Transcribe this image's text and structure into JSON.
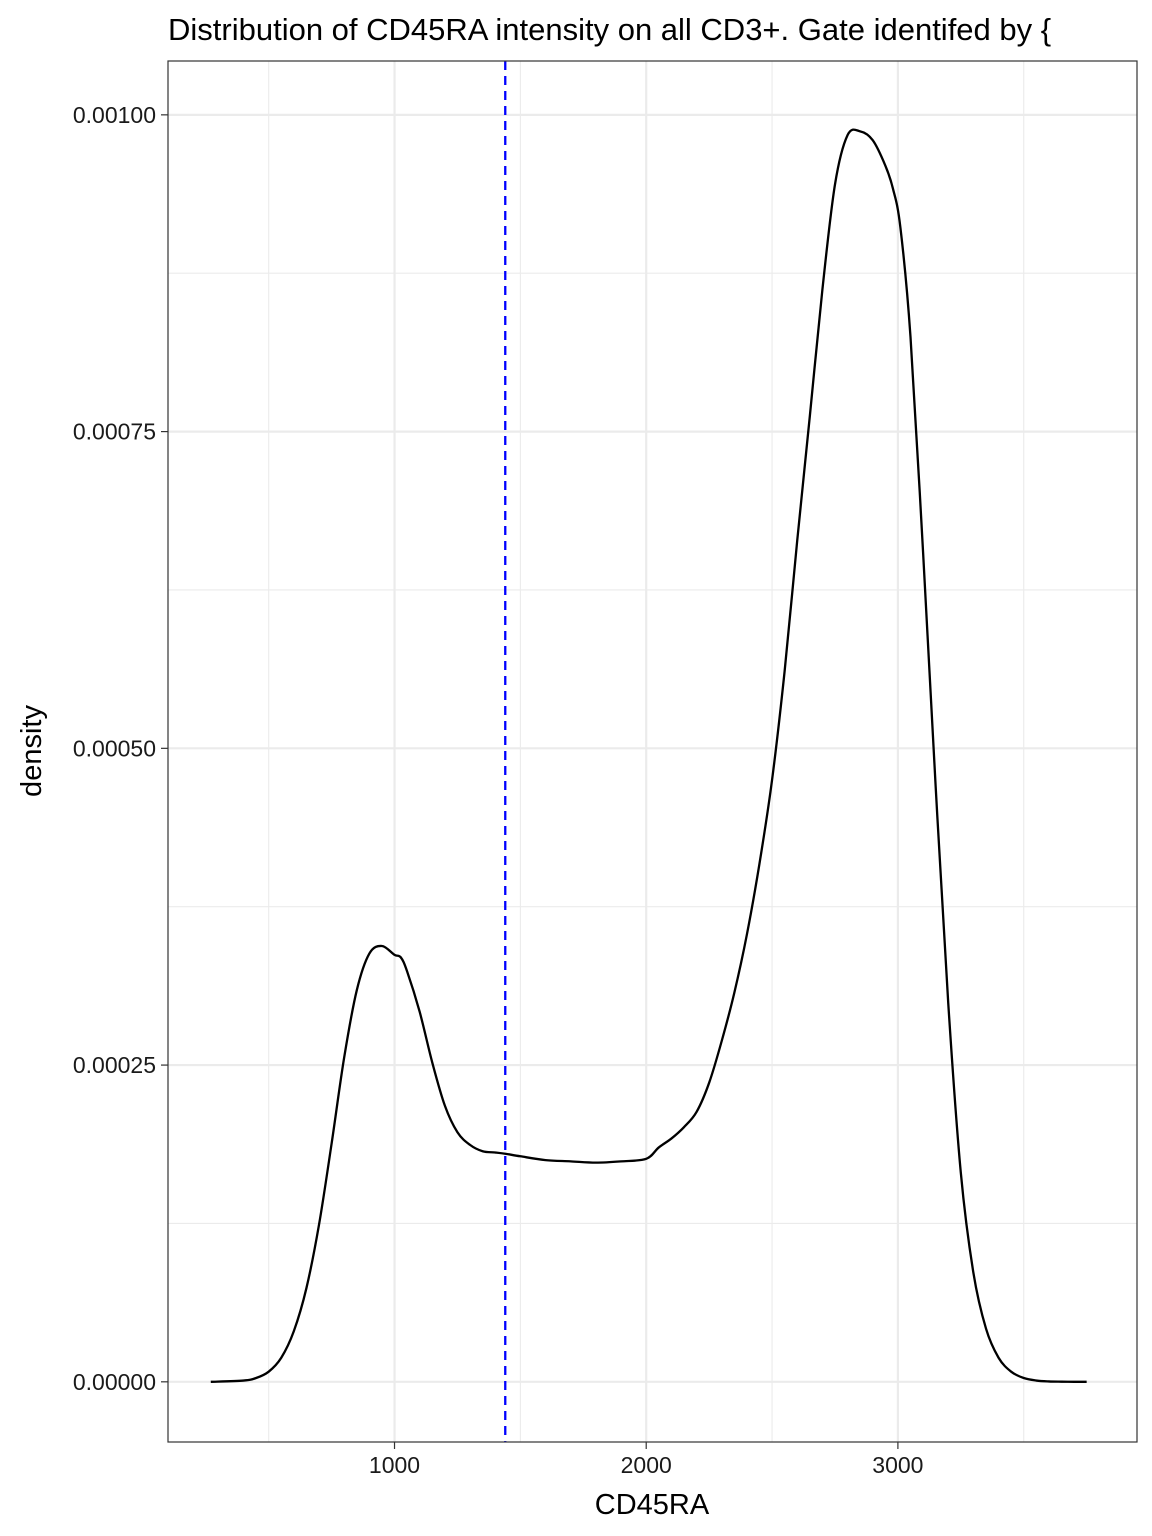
{
  "chart_data": {
    "type": "area",
    "title": "Distribution of CD45RA intensity on all CD3+. Gate identifed by {",
    "xlabel": "CD45RA",
    "ylabel": "density",
    "xlim": [
      100,
      3950
    ],
    "ylim": [
      -4.75e-05,
      0.0010425
    ],
    "x_ticks": [
      1000,
      2000,
      3000
    ],
    "x_tick_labels": [
      "1000",
      "2000",
      "3000"
    ],
    "x_minor_ticks": [
      500,
      1500,
      2500,
      3500
    ],
    "y_ticks": [
      0,
      0.00025,
      0.0005,
      0.00075,
      0.001
    ],
    "y_tick_labels": [
      "0.00000",
      "0.00025",
      "0.00050",
      "0.00075",
      "0.00100"
    ],
    "y_minor_ticks": [
      0.000125,
      0.000375,
      0.000625,
      0.000875
    ],
    "grid": true,
    "legend": "none",
    "colors": {
      "curve": "#000000",
      "gate_line": "#0000ff",
      "grid": "#ebebeb",
      "panel_border": "#333333",
      "background": "#ffffff"
    },
    "series": [
      {
        "x": [
          270,
          400,
          450,
          500,
          550,
          600,
          650,
          700,
          750,
          800,
          850,
          900,
          950,
          1000,
          1025,
          1050,
          1100,
          1150,
          1200,
          1250,
          1300,
          1350,
          1400,
          1440,
          1500,
          1600,
          1700,
          1800,
          1900,
          2000,
          2050,
          2100,
          2150,
          2200,
          2250,
          2300,
          2350,
          2400,
          2450,
          2500,
          2550,
          2600,
          2650,
          2700,
          2750,
          2800,
          2850,
          2900,
          2950,
          2980,
          3010,
          3050,
          3100,
          3150,
          3200,
          3250,
          3300,
          3350,
          3400,
          3450,
          3500,
          3550,
          3600,
          3650,
          3700,
          3750
        ],
        "y": [
          0.0,
          1e-06,
          3e-06,
          8e-06,
          1.9e-05,
          4e-05,
          7.4e-05,
          0.000124,
          0.000188,
          0.000256,
          0.000309,
          0.000338,
          0.000344,
          0.000337,
          0.000335,
          0.000324,
          0.000292,
          0.000252,
          0.000218,
          0.000197,
          0.000187,
          0.000182,
          0.000181,
          0.00018,
          0.000178,
          0.000175,
          0.000174,
          0.000173,
          0.000174,
          0.000176,
          0.000185,
          0.000192,
          0.000201,
          0.000213,
          0.000236,
          0.000269,
          0.000307,
          0.000353,
          0.000409,
          0.000475,
          0.000561,
          0.000664,
          0.000762,
          0.000862,
          0.000945,
          0.000984,
          0.000987,
          0.00098,
          0.00096,
          0.000942,
          0.000911,
          0.000825,
          0.000655,
          0.00047,
          0.000299,
          0.000165,
          8.6e-05,
          4.2e-05,
          1.9e-05,
          8e-06,
          3e-06,
          1e-06,
          3e-07,
          1e-07,
          0.0,
          0.0
        ]
      }
    ],
    "annotations": [
      {
        "type": "vline",
        "x": 1440,
        "linetype": "dashed",
        "color": "#0000ff"
      }
    ]
  }
}
